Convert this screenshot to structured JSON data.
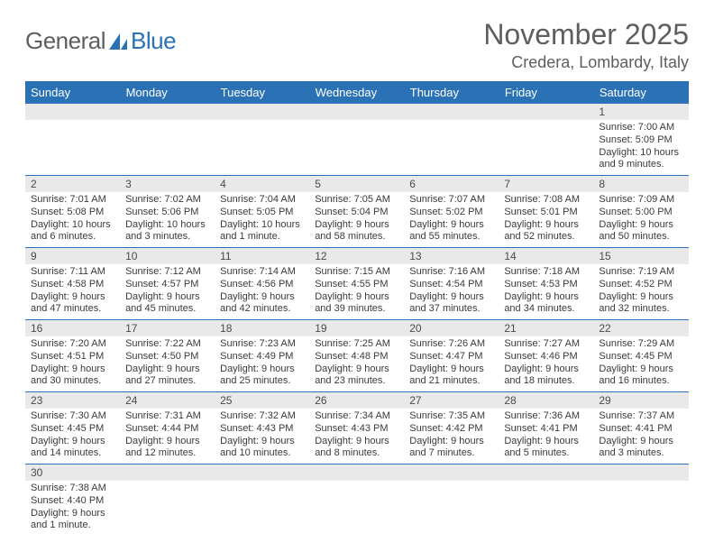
{
  "logo": {
    "part1": "General",
    "part2": "Blue"
  },
  "title": "November 2025",
  "location": "Credera, Lombardy, Italy",
  "colors": {
    "header_bg": "#2a72b5",
    "header_text": "#ffffff",
    "daynum_bg": "#e9e9e9",
    "cell_border": "#2a72b5",
    "text": "#3a3a3a",
    "title_text": "#5e5e5e"
  },
  "day_headers": [
    "Sunday",
    "Monday",
    "Tuesday",
    "Wednesday",
    "Thursday",
    "Friday",
    "Saturday"
  ],
  "weeks": [
    {
      "nums": [
        "",
        "",
        "",
        "",
        "",
        "",
        "1"
      ],
      "infos": [
        "",
        "",
        "",
        "",
        "",
        "",
        "Sunrise: 7:00 AM\nSunset: 5:09 PM\nDaylight: 10 hours and 9 minutes."
      ]
    },
    {
      "nums": [
        "2",
        "3",
        "4",
        "5",
        "6",
        "7",
        "8"
      ],
      "infos": [
        "Sunrise: 7:01 AM\nSunset: 5:08 PM\nDaylight: 10 hours and 6 minutes.",
        "Sunrise: 7:02 AM\nSunset: 5:06 PM\nDaylight: 10 hours and 3 minutes.",
        "Sunrise: 7:04 AM\nSunset: 5:05 PM\nDaylight: 10 hours and 1 minute.",
        "Sunrise: 7:05 AM\nSunset: 5:04 PM\nDaylight: 9 hours and 58 minutes.",
        "Sunrise: 7:07 AM\nSunset: 5:02 PM\nDaylight: 9 hours and 55 minutes.",
        "Sunrise: 7:08 AM\nSunset: 5:01 PM\nDaylight: 9 hours and 52 minutes.",
        "Sunrise: 7:09 AM\nSunset: 5:00 PM\nDaylight: 9 hours and 50 minutes."
      ]
    },
    {
      "nums": [
        "9",
        "10",
        "11",
        "12",
        "13",
        "14",
        "15"
      ],
      "infos": [
        "Sunrise: 7:11 AM\nSunset: 4:58 PM\nDaylight: 9 hours and 47 minutes.",
        "Sunrise: 7:12 AM\nSunset: 4:57 PM\nDaylight: 9 hours and 45 minutes.",
        "Sunrise: 7:14 AM\nSunset: 4:56 PM\nDaylight: 9 hours and 42 minutes.",
        "Sunrise: 7:15 AM\nSunset: 4:55 PM\nDaylight: 9 hours and 39 minutes.",
        "Sunrise: 7:16 AM\nSunset: 4:54 PM\nDaylight: 9 hours and 37 minutes.",
        "Sunrise: 7:18 AM\nSunset: 4:53 PM\nDaylight: 9 hours and 34 minutes.",
        "Sunrise: 7:19 AM\nSunset: 4:52 PM\nDaylight: 9 hours and 32 minutes."
      ]
    },
    {
      "nums": [
        "16",
        "17",
        "18",
        "19",
        "20",
        "21",
        "22"
      ],
      "infos": [
        "Sunrise: 7:20 AM\nSunset: 4:51 PM\nDaylight: 9 hours and 30 minutes.",
        "Sunrise: 7:22 AM\nSunset: 4:50 PM\nDaylight: 9 hours and 27 minutes.",
        "Sunrise: 7:23 AM\nSunset: 4:49 PM\nDaylight: 9 hours and 25 minutes.",
        "Sunrise: 7:25 AM\nSunset: 4:48 PM\nDaylight: 9 hours and 23 minutes.",
        "Sunrise: 7:26 AM\nSunset: 4:47 PM\nDaylight: 9 hours and 21 minutes.",
        "Sunrise: 7:27 AM\nSunset: 4:46 PM\nDaylight: 9 hours and 18 minutes.",
        "Sunrise: 7:29 AM\nSunset: 4:45 PM\nDaylight: 9 hours and 16 minutes."
      ]
    },
    {
      "nums": [
        "23",
        "24",
        "25",
        "26",
        "27",
        "28",
        "29"
      ],
      "infos": [
        "Sunrise: 7:30 AM\nSunset: 4:45 PM\nDaylight: 9 hours and 14 minutes.",
        "Sunrise: 7:31 AM\nSunset: 4:44 PM\nDaylight: 9 hours and 12 minutes.",
        "Sunrise: 7:32 AM\nSunset: 4:43 PM\nDaylight: 9 hours and 10 minutes.",
        "Sunrise: 7:34 AM\nSunset: 4:43 PM\nDaylight: 9 hours and 8 minutes.",
        "Sunrise: 7:35 AM\nSunset: 4:42 PM\nDaylight: 9 hours and 7 minutes.",
        "Sunrise: 7:36 AM\nSunset: 4:41 PM\nDaylight: 9 hours and 5 minutes.",
        "Sunrise: 7:37 AM\nSunset: 4:41 PM\nDaylight: 9 hours and 3 minutes."
      ]
    },
    {
      "nums": [
        "30",
        "",
        "",
        "",
        "",
        "",
        ""
      ],
      "infos": [
        "Sunrise: 7:38 AM\nSunset: 4:40 PM\nDaylight: 9 hours and 1 minute.",
        "",
        "",
        "",
        "",
        "",
        ""
      ]
    }
  ]
}
